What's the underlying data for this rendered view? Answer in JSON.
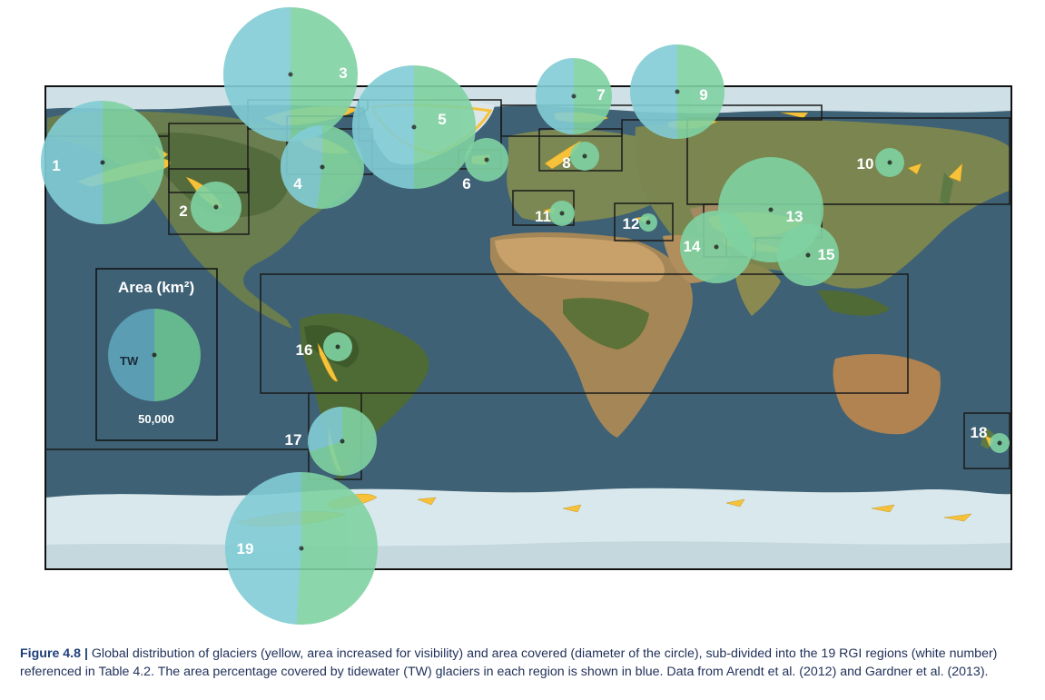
{
  "legend": {
    "title": "Area",
    "unit": "(km²)",
    "tw_label": "TW",
    "scale_value": "50,000"
  },
  "caption": {
    "label": "Figure 4.8 |",
    "text": " Global distribution of glaciers (yellow, area increased for visibility) and area covered (diameter of the circle), sub-divided into the 19 RGI regions (white number) referenced in Table 4.2. The area percentage covered by tidewater (TW) glaciers in each region is shown in blue. Data from Arendt et al. (2012) and Gardner et al. (2013)."
  },
  "colors": {
    "tidewater": "#82cdd6",
    "land": "#7fd2a2",
    "glacier": "#f7c23a",
    "ocean": "#3e6175",
    "ice": "#d9e8ec",
    "frame": "#111111"
  },
  "regions": [
    {
      "id": "1",
      "label": "1"
    },
    {
      "id": "2",
      "label": "2"
    },
    {
      "id": "3",
      "label": "3"
    },
    {
      "id": "4",
      "label": "4"
    },
    {
      "id": "5",
      "label": "5"
    },
    {
      "id": "6",
      "label": "6"
    },
    {
      "id": "7",
      "label": "7"
    },
    {
      "id": "8",
      "label": "8"
    },
    {
      "id": "9",
      "label": "9"
    },
    {
      "id": "10",
      "label": "10"
    },
    {
      "id": "11",
      "label": "11"
    },
    {
      "id": "12",
      "label": "12"
    },
    {
      "id": "13",
      "label": "13"
    },
    {
      "id": "14",
      "label": "14"
    },
    {
      "id": "15",
      "label": "15"
    },
    {
      "id": "16",
      "label": "16"
    },
    {
      "id": "17",
      "label": "17"
    },
    {
      "id": "18",
      "label": "18"
    },
    {
      "id": "19",
      "label": "19"
    }
  ]
}
